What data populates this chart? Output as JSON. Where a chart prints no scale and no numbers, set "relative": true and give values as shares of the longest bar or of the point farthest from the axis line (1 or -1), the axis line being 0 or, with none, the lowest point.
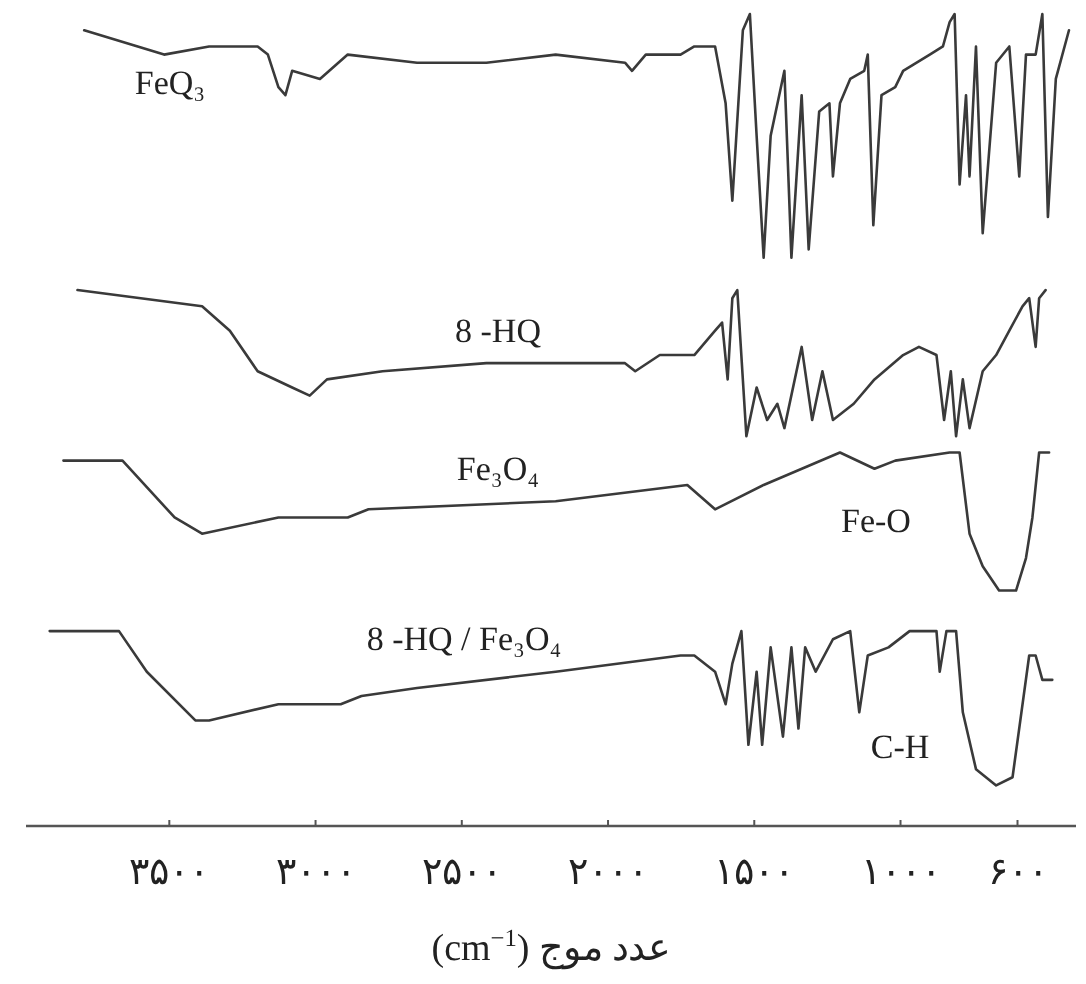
{
  "chart_data": {
    "type": "line",
    "relative": true,
    "xlabel": "عدد موج (cm$^{−1}$)",
    "xlim": [
      3990,
      400
    ],
    "xticks": [
      {
        "value": 3500,
        "label": "۳۵۰۰"
      },
      {
        "value": 3000,
        "label": "۳۰۰۰"
      },
      {
        "value": 2500,
        "label": "۲۵۰۰"
      },
      {
        "value": 2000,
        "label": "۲۰۰۰"
      },
      {
        "value": 1500,
        "label": "۱۵۰۰"
      },
      {
        "value": 1000,
        "label": "۱۰۰۰"
      },
      {
        "value": 600,
        "label": "۶۰۰"
      }
    ],
    "tick_labels": "x",
    "marker": "none",
    "line_style": "solid",
    "series": [
      {
        "name": "FeQ₃",
        "color": "#3a3a3a",
        "x": [
          3791,
          3518,
          3364,
          3198,
          3163,
          3127,
          3103,
          3080,
          2985,
          2890,
          2653,
          2416,
          2179,
          1942,
          1918,
          1871,
          1752,
          1705,
          1634,
          1598,
          1575,
          1539,
          1515,
          1492,
          1468,
          1444,
          1397,
          1373,
          1338,
          1314,
          1278,
          1243,
          1231,
          1207,
          1172,
          1124,
          1112,
          1093,
          1065,
          1018,
          991,
          900,
          855,
          832,
          815,
          798,
          776,
          764,
          742,
          719,
          673,
          628,
          594,
          571,
          538,
          515,
          496,
          469,
          424
        ],
        "values": [
          0.98,
          0.95,
          0.96,
          0.96,
          0.95,
          0.91,
          0.9,
          0.93,
          0.92,
          0.95,
          0.94,
          0.94,
          0.95,
          0.94,
          0.93,
          0.95,
          0.95,
          0.96,
          0.96,
          0.89,
          0.77,
          0.98,
          1.0,
          0.85,
          0.7,
          0.85,
          0.93,
          0.7,
          0.9,
          0.71,
          0.88,
          0.89,
          0.8,
          0.89,
          0.92,
          0.93,
          0.95,
          0.74,
          0.9,
          0.91,
          0.93,
          0.95,
          0.96,
          0.99,
          1.0,
          0.79,
          0.9,
          0.8,
          0.96,
          0.73,
          0.94,
          0.96,
          0.8,
          0.95,
          0.95,
          1.0,
          0.75,
          0.92,
          0.98
        ]
      },
      {
        "name": "8 -HQ",
        "color": "#3a3a3a",
        "x": [
          3814,
          3388,
          3293,
          3198,
          3080,
          3020,
          2961,
          2771,
          2416,
          1942,
          1907,
          1823,
          1705,
          1634,
          1610,
          1591,
          1575,
          1558,
          1527,
          1492,
          1456,
          1421,
          1397,
          1338,
          1302,
          1267,
          1231,
          1160,
          1089,
          991,
          937,
          877,
          851,
          828,
          810,
          787,
          764,
          719,
          673,
          628,
          583,
          560,
          538,
          526,
          504
        ],
        "values": [
          0.66,
          0.64,
          0.61,
          0.56,
          0.54,
          0.53,
          0.55,
          0.56,
          0.57,
          0.57,
          0.56,
          0.58,
          0.58,
          0.61,
          0.62,
          0.55,
          0.65,
          0.66,
          0.48,
          0.54,
          0.5,
          0.52,
          0.49,
          0.59,
          0.5,
          0.56,
          0.5,
          0.52,
          0.55,
          0.58,
          0.59,
          0.58,
          0.5,
          0.56,
          0.48,
          0.55,
          0.49,
          0.56,
          0.58,
          0.61,
          0.64,
          0.65,
          0.59,
          0.65,
          0.66
        ]
      },
      {
        "name": "Fe₃O₄",
        "color": "#3a3a3a",
        "x": [
          3862,
          3660,
          3482,
          3388,
          3127,
          2937,
          2890,
          2819,
          2179,
          1729,
          1634,
          1468,
          1207,
          1089,
          1018,
          832,
          798,
          764,
          719,
          663,
          605,
          571,
          549,
          526,
          492
        ],
        "values": [
          0.45,
          0.45,
          0.38,
          0.36,
          0.38,
          0.38,
          0.38,
          0.39,
          0.4,
          0.42,
          0.39,
          0.42,
          0.46,
          0.44,
          0.45,
          0.46,
          0.46,
          0.36,
          0.32,
          0.29,
          0.29,
          0.33,
          0.38,
          0.46,
          0.46
        ]
      },
      {
        "name": "8 -HQ / Fe₃O₄",
        "color": "#3a3a3a",
        "x": [
          3909,
          3672,
          3577,
          3411,
          3364,
          3127,
          2914,
          2843,
          2653,
          2179,
          1752,
          1705,
          1634,
          1598,
          1575,
          1544,
          1520,
          1492,
          1473,
          1444,
          1402,
          1373,
          1349,
          1326,
          1290,
          1231,
          1172,
          1141,
          1112,
          1041,
          969,
          877,
          866,
          843,
          810,
          787,
          742,
          673,
          617,
          560,
          538,
          515,
          481
        ],
        "values": [
          0.24,
          0.24,
          0.19,
          0.13,
          0.13,
          0.15,
          0.15,
          0.16,
          0.17,
          0.19,
          0.21,
          0.21,
          0.19,
          0.15,
          0.2,
          0.24,
          0.1,
          0.19,
          0.1,
          0.22,
          0.11,
          0.22,
          0.12,
          0.22,
          0.19,
          0.23,
          0.24,
          0.14,
          0.21,
          0.22,
          0.24,
          0.24,
          0.19,
          0.24,
          0.24,
          0.14,
          0.07,
          0.05,
          0.06,
          0.21,
          0.21,
          0.18,
          0.18
        ]
      }
    ],
    "annotations": [
      "Fe-O",
      "C-H"
    ]
  }
}
